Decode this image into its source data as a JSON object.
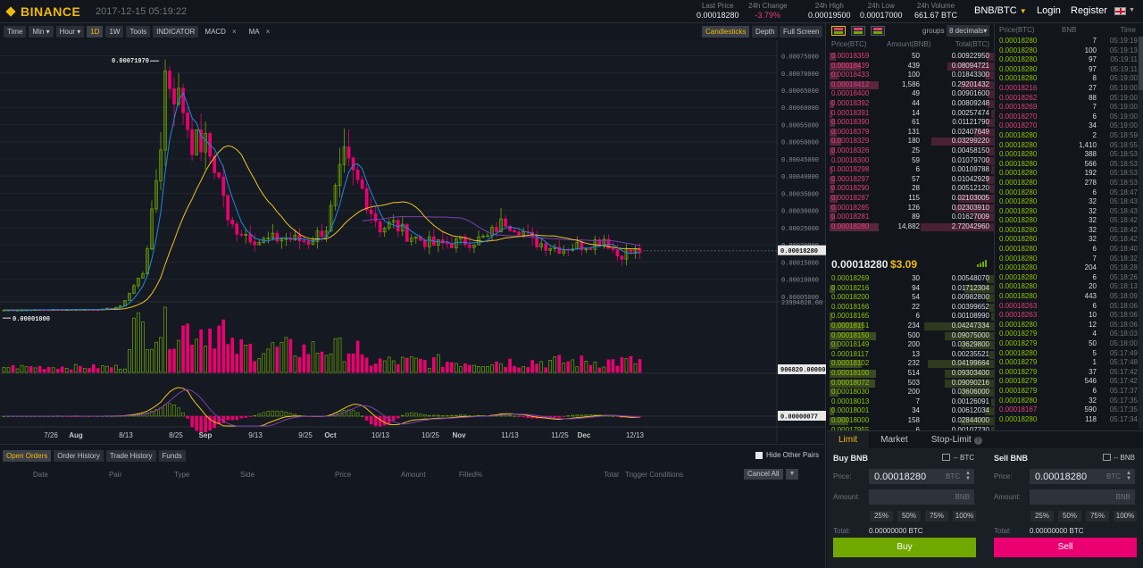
{
  "header": {
    "brand": "BINANCE",
    "datetime": "2017-12-15 05:19:22",
    "stats": [
      {
        "label": "Last Price",
        "value": "0.00018280",
        "neg": false
      },
      {
        "label": "24h Change",
        "value": "-3.79%",
        "neg": true
      },
      {
        "label": "24h High",
        "value": "0.00019500",
        "neg": false
      },
      {
        "label": "24h Low",
        "value": "0.00017000",
        "neg": false
      },
      {
        "label": "24h Volume",
        "value": "661.67 BTC",
        "neg": false
      }
    ],
    "pair": "BNB/BTC",
    "login": "Login",
    "register": "Register"
  },
  "toolbar": {
    "time": "Time",
    "min": "Min",
    "hour": "Hour",
    "d1": "1D",
    "w1": "1W",
    "tools": "Tools",
    "indicator": "INDICATOR",
    "macd": "MACD",
    "ma": "MA",
    "close_glyph": "×",
    "candlesticks": "Candlesticks",
    "depth": "Depth",
    "fullscreen": "Full Screen"
  },
  "chart": {
    "price_ticks": [
      "0.00075000",
      "0.00070000",
      "0.00065000",
      "0.00060000",
      "0.00055000",
      "0.00050000",
      "0.00045000",
      "0.00040000",
      "0.00035000",
      "0.00030000",
      "0.00025000",
      "0.00020000",
      "0.00015000",
      "0.00010000",
      "0.00005000"
    ],
    "high_label": "0.00071970",
    "low_label": "0.00001000",
    "current_label": "0.00018280",
    "volume_max": "23994828.00",
    "volume_current": "906820.00000",
    "macd_current": "0.00000077",
    "x_ticks": [
      "7/26",
      "Aug",
      "8/13",
      "8/25",
      "Sep",
      "9/13",
      "9/25",
      "Oct",
      "10/13",
      "10/25",
      "Nov",
      "11/13",
      "11/25",
      "Dec",
      "12/13"
    ],
    "colors": {
      "up": "#70a800",
      "down": "#ea0070",
      "ma_fast": "#1e88e5",
      "ma_slow": "#f0c020",
      "ma_long": "#7b3fb0"
    }
  },
  "orders_panel": {
    "tabs": [
      "Open Orders",
      "Order History",
      "Trade History",
      "Funds"
    ],
    "hide_other_pairs": "Hide Other Pairs",
    "headers": [
      "Date",
      "Pair",
      "Type",
      "Side",
      "Price",
      "Amount",
      "Filled%",
      "Total",
      "Trigger Conditions"
    ],
    "cancel_all": "Cancel All"
  },
  "orderbook": {
    "groups_label": "groups",
    "decimals": "8 decimals",
    "headers": [
      "Price(BTC)",
      "Amount(BNB)",
      "Total(BTC)"
    ],
    "asks": [
      {
        "price": "0.00018359",
        "amount": "50",
        "total": "0.00922950",
        "bar": 0.05,
        "hl": 0.12
      },
      {
        "price": "0.00018439",
        "amount": "439",
        "total": "0.08094721",
        "bar": 0.28,
        "hl": 0.6
      },
      {
        "price": "0.00018433",
        "amount": "100",
        "total": "0.01843300",
        "bar": 0.06,
        "hl": 0.18
      },
      {
        "price": "0.00018412",
        "amount": "1,586",
        "total": "0.29201432",
        "bar": 0.2,
        "hl": 0.95
      },
      {
        "price": "0.00018400",
        "amount": "49",
        "total": "0.00901600",
        "bar": 0.04,
        "hl": 0
      },
      {
        "price": "0.00018392",
        "amount": "44",
        "total": "0.00809248",
        "bar": 0.04,
        "hl": 0.08
      },
      {
        "price": "0.00018391",
        "amount": "14",
        "total": "0.00257474",
        "bar": 0.02,
        "hl": 0.06
      },
      {
        "price": "0.00018390",
        "amount": "61",
        "total": "0.01121790",
        "bar": 0.05,
        "hl": 0.1
      },
      {
        "price": "0.00018379",
        "amount": "131",
        "total": "0.02407649",
        "bar": 0.12,
        "hl": 0.14
      },
      {
        "price": "0.00018329",
        "amount": "180",
        "total": "0.03299220",
        "bar": 0.38,
        "hl": 0.22
      },
      {
        "price": "0.00018326",
        "amount": "25",
        "total": "0.00458150",
        "bar": 0.04,
        "hl": 0.1
      },
      {
        "price": "0.00018300",
        "amount": "59",
        "total": "0.01079700",
        "bar": 0.05,
        "hl": 0
      },
      {
        "price": "0.00018298",
        "amount": "6",
        "total": "0.00109788",
        "bar": 0.02,
        "hl": 0.06
      },
      {
        "price": "0.00018297",
        "amount": "57",
        "total": "0.01042929",
        "bar": 0.05,
        "hl": 0.1
      },
      {
        "price": "0.00018290",
        "amount": "28",
        "total": "0.00512120",
        "bar": 0.03,
        "hl": 0.08
      },
      {
        "price": "0.00018287",
        "amount": "115",
        "total": "0.02103005",
        "bar": 0.22,
        "hl": 0.16
      },
      {
        "price": "0.00018285",
        "amount": "126",
        "total": "0.02303910",
        "bar": 0.24,
        "hl": 0.14
      },
      {
        "price": "0.00018281",
        "amount": "89",
        "total": "0.01627009",
        "bar": 0.12,
        "hl": 0.1
      },
      {
        "price": "0.00018280",
        "amount": "14,882",
        "total": "2.72042960",
        "bar": 0.44,
        "hl": 0.95
      }
    ],
    "last_price": "0.00018280",
    "last_usd": "$3.09",
    "bids": [
      {
        "price": "0.00018269",
        "amount": "30",
        "total": "0.00548070",
        "bar": 0.05,
        "hl": 0
      },
      {
        "price": "0.00018216",
        "amount": "94",
        "total": "0.01712304",
        "bar": 0.18,
        "hl": 0.1
      },
      {
        "price": "0.00018200",
        "amount": "54",
        "total": "0.00982800",
        "bar": 0.05,
        "hl": 0
      },
      {
        "price": "0.00018166",
        "amount": "22",
        "total": "0.00399652",
        "bar": 0.03,
        "hl": 0
      },
      {
        "price": "0.00018165",
        "amount": "6",
        "total": "0.00108990",
        "bar": 0.02,
        "hl": 0.06
      },
      {
        "price": "0.00018151",
        "amount": "234",
        "total": "0.04247334",
        "bar": 0.42,
        "hl": 0.66
      },
      {
        "price": "0.00018150",
        "amount": "500",
        "total": "0.09075000",
        "bar": 0.3,
        "hl": 0.9
      },
      {
        "price": "0.00018149",
        "amount": "200",
        "total": "0.03629800",
        "bar": 0.2,
        "hl": 0.18
      },
      {
        "price": "0.00018117",
        "amount": "13",
        "total": "0.00235521",
        "bar": 0.03,
        "hl": 0
      },
      {
        "price": "0.00018102",
        "amount": "232",
        "total": "0.04199664",
        "bar": 0.4,
        "hl": 0.62
      },
      {
        "price": "0.00018100",
        "amount": "514",
        "total": "0.09303400",
        "bar": 0.3,
        "hl": 0.9
      },
      {
        "price": "0.00018072",
        "amount": "503",
        "total": "0.09090216",
        "bar": 0.3,
        "hl": 0.88
      },
      {
        "price": "0.00018030",
        "amount": "200",
        "total": "0.03606000",
        "bar": 0.2,
        "hl": 0.18
      },
      {
        "price": "0.00018013",
        "amount": "7",
        "total": "0.00126091",
        "bar": 0.02,
        "hl": 0
      },
      {
        "price": "0.00018001",
        "amount": "34",
        "total": "0.00612034",
        "bar": 0.06,
        "hl": 0.08
      },
      {
        "price": "0.00018000",
        "amount": "158",
        "total": "0.02844000",
        "bar": 0.2,
        "hl": 0.36
      },
      {
        "price": "0.00017955",
        "amount": "6",
        "total": "0.00107730",
        "bar": 0.02,
        "hl": 0
      },
      {
        "price": "0.00017937",
        "amount": "357",
        "total": "0.06403509",
        "bar": 0.3,
        "hl": 0.9
      },
      {
        "price": "0.00017931",
        "amount": "7",
        "total": "0.00125517",
        "bar": 0.02,
        "hl": 0.04
      }
    ]
  },
  "trades": {
    "headers": [
      "Price(BTC)",
      "BNB",
      "Time"
    ],
    "rows": [
      {
        "p": "0.00018280",
        "a": "7",
        "t": "05:19:19",
        "s": "buy"
      },
      {
        "p": "0.00018280",
        "a": "100",
        "t": "05:19:13",
        "s": "buy"
      },
      {
        "p": "0.00018280",
        "a": "97",
        "t": "05:19:11",
        "s": "buy"
      },
      {
        "p": "0.00018280",
        "a": "97",
        "t": "05:19:11",
        "s": "buy"
      },
      {
        "p": "0.00018280",
        "a": "8",
        "t": "05:19:00",
        "s": "buy"
      },
      {
        "p": "0.00018216",
        "a": "27",
        "t": "05:19:00",
        "s": "sell"
      },
      {
        "p": "0.00018262",
        "a": "88",
        "t": "05:19:00",
        "s": "sell"
      },
      {
        "p": "0.00018269",
        "a": "7",
        "t": "05:19:00",
        "s": "sell"
      },
      {
        "p": "0.00018270",
        "a": "6",
        "t": "05:19:00",
        "s": "sell"
      },
      {
        "p": "0.00018270",
        "a": "34",
        "t": "05:19:00",
        "s": "sell"
      },
      {
        "p": "0.00018280",
        "a": "2",
        "t": "05:18:59",
        "s": "buy"
      },
      {
        "p": "0.00018280",
        "a": "1,410",
        "t": "05:18:55",
        "s": "buy"
      },
      {
        "p": "0.00018280",
        "a": "388",
        "t": "05:18:53",
        "s": "buy"
      },
      {
        "p": "0.00018280",
        "a": "566",
        "t": "05:18:53",
        "s": "buy"
      },
      {
        "p": "0.00018280",
        "a": "192",
        "t": "05:18:53",
        "s": "buy"
      },
      {
        "p": "0.00018280",
        "a": "278",
        "t": "05:18:53",
        "s": "buy"
      },
      {
        "p": "0.00018280",
        "a": "6",
        "t": "05:18:47",
        "s": "buy"
      },
      {
        "p": "0.00018280",
        "a": "32",
        "t": "05:18:43",
        "s": "buy"
      },
      {
        "p": "0.00018280",
        "a": "32",
        "t": "05:18:43",
        "s": "buy"
      },
      {
        "p": "0.00018280",
        "a": "32",
        "t": "05:18:42",
        "s": "buy"
      },
      {
        "p": "0.00018280",
        "a": "32",
        "t": "05:18:42",
        "s": "buy"
      },
      {
        "p": "0.00018280",
        "a": "32",
        "t": "05:18:42",
        "s": "buy"
      },
      {
        "p": "0.00018280",
        "a": "6",
        "t": "05:18:40",
        "s": "buy"
      },
      {
        "p": "0.00018280",
        "a": "7",
        "t": "05:18:32",
        "s": "buy"
      },
      {
        "p": "0.00018280",
        "a": "204",
        "t": "05:18:28",
        "s": "buy"
      },
      {
        "p": "0.00018280",
        "a": "6",
        "t": "05:18:26",
        "s": "buy"
      },
      {
        "p": "0.00018280",
        "a": "20",
        "t": "05:18:13",
        "s": "buy"
      },
      {
        "p": "0.00018280",
        "a": "443",
        "t": "05:18:09",
        "s": "buy"
      },
      {
        "p": "0.00018263",
        "a": "6",
        "t": "05:18:06",
        "s": "sell"
      },
      {
        "p": "0.00018263",
        "a": "10",
        "t": "05:18:06",
        "s": "sell"
      },
      {
        "p": "0.00018280",
        "a": "12",
        "t": "05:18:06",
        "s": "buy"
      },
      {
        "p": "0.00018279",
        "a": "4",
        "t": "05:18:03",
        "s": "buy"
      },
      {
        "p": "0.00018279",
        "a": "50",
        "t": "05:18:00",
        "s": "buy"
      },
      {
        "p": "0.00018280",
        "a": "5",
        "t": "05:17:49",
        "s": "buy"
      },
      {
        "p": "0.00018279",
        "a": "1",
        "t": "05:17:48",
        "s": "buy"
      },
      {
        "p": "0.00018279",
        "a": "37",
        "t": "05:17:42",
        "s": "buy"
      },
      {
        "p": "0.00018279",
        "a": "546",
        "t": "05:17:42",
        "s": "buy"
      },
      {
        "p": "0.00018279",
        "a": "6",
        "t": "05:17:37",
        "s": "buy"
      },
      {
        "p": "0.00018280",
        "a": "32",
        "t": "05:17:35",
        "s": "buy"
      },
      {
        "p": "0.00018167",
        "a": "590",
        "t": "05:17:35",
        "s": "sell"
      },
      {
        "p": "0.00018280",
        "a": "118",
        "t": "05:17:34",
        "s": "buy"
      }
    ]
  },
  "trade_form": {
    "tabs": [
      "Limit",
      "Market",
      "Stop-Limit"
    ],
    "help_glyph": "?",
    "buy": {
      "title": "Buy BNB",
      "balance": "-- BTC",
      "price_label": "Price:",
      "price": "0.00018280",
      "price_unit": "BTC",
      "amount_label": "Amount:",
      "amount_unit": "BNB",
      "total_label": "Total:",
      "total": "0.00000000 BTC",
      "button": "Buy"
    },
    "sell": {
      "title": "Sell BNB",
      "balance": "-- BNB",
      "price_label": "Price:",
      "price": "0.00018280",
      "price_unit": "BTC",
      "amount_label": "Amount:",
      "amount_unit": "BNB",
      "total_label": "Total:",
      "total": "0.00000000 BTC",
      "button": "Sell"
    },
    "percents": [
      "25%",
      "50%",
      "75%",
      "100%"
    ]
  }
}
